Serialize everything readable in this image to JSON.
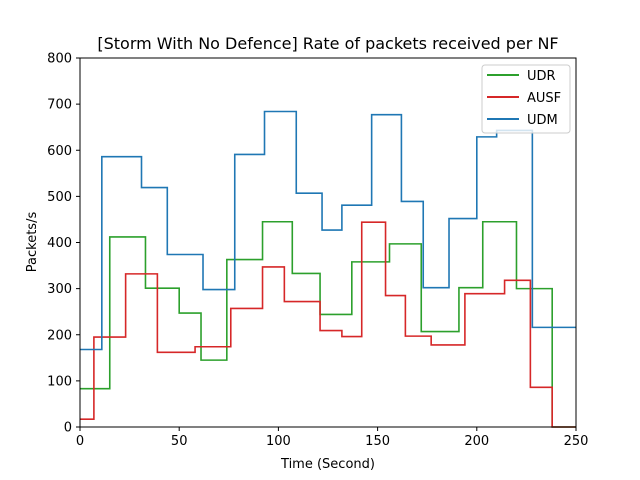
{
  "chart_data": {
    "type": "line",
    "title": "[Storm With No Defence] Rate of packets received per NF",
    "xlabel": "Time (Second)",
    "ylabel": "Packets/s",
    "xlim": [
      0,
      250
    ],
    "ylim": [
      0,
      800
    ],
    "xticks": [
      "0",
      "50",
      "100",
      "150",
      "200",
      "250"
    ],
    "yticks": [
      "0",
      "100",
      "200",
      "300",
      "400",
      "500",
      "600",
      "700",
      "800"
    ],
    "grid": false,
    "legend_position": "top-right",
    "series": [
      {
        "name": "UDR",
        "color": "#2ca02c",
        "x": [
          0,
          15,
          15,
          33,
          33,
          50,
          50,
          61,
          61,
          74,
          74,
          92,
          92,
          107,
          107,
          121,
          121,
          137,
          137,
          156,
          156,
          172,
          172,
          191,
          191,
          203,
          203,
          220,
          220,
          238,
          238,
          250
        ],
        "y": [
          83,
          83,
          412,
          412,
          301,
          301,
          247,
          247,
          145,
          145,
          363,
          363,
          445,
          445,
          333,
          333,
          244,
          244,
          358,
          358,
          397,
          397,
          207,
          207,
          302,
          302,
          445,
          445,
          300,
          300,
          0,
          0
        ]
      },
      {
        "name": "AUSF",
        "color": "#d62728",
        "x": [
          0,
          7,
          7,
          23,
          23,
          39,
          39,
          58,
          58,
          76,
          76,
          92,
          92,
          103,
          103,
          121,
          121,
          132,
          132,
          142,
          142,
          154,
          154,
          164,
          164,
          177,
          177,
          194,
          194,
          214,
          214,
          227,
          227,
          238,
          238,
          250
        ],
        "y": [
          17,
          17,
          195,
          195,
          332,
          332,
          162,
          162,
          174,
          174,
          257,
          257,
          347,
          347,
          272,
          272,
          209,
          209,
          196,
          196,
          444,
          444,
          285,
          285,
          197,
          197,
          178,
          178,
          289,
          289,
          318,
          318,
          86,
          86,
          0,
          0
        ]
      },
      {
        "name": "UDM",
        "color": "#1f77b4",
        "x": [
          0,
          11,
          11,
          31,
          31,
          44,
          44,
          62,
          62,
          78,
          78,
          93,
          93,
          109,
          109,
          122,
          122,
          132,
          132,
          147,
          147,
          162,
          162,
          173,
          173,
          186,
          186,
          200,
          200,
          210,
          210,
          228,
          228,
          250
        ],
        "y": [
          168,
          168,
          586,
          586,
          519,
          519,
          374,
          374,
          298,
          298,
          591,
          591,
          684,
          684,
          507,
          507,
          427,
          427,
          481,
          481,
          677,
          677,
          489,
          489,
          302,
          302,
          452,
          452,
          629,
          629,
          643,
          643,
          216,
          216
        ]
      }
    ]
  }
}
